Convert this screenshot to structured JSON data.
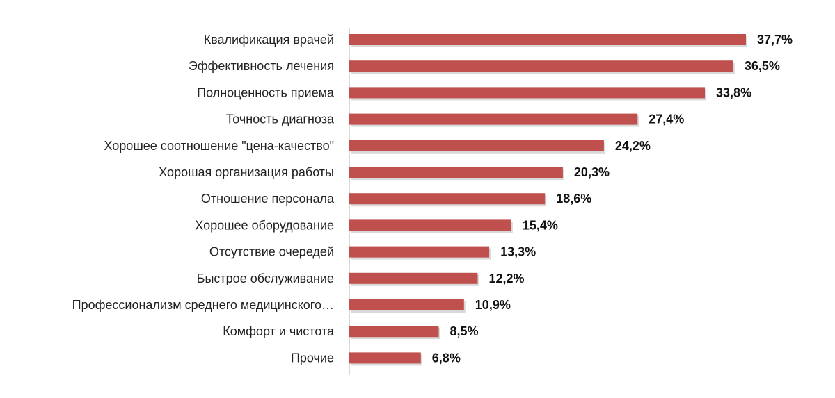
{
  "chart_data": {
    "type": "bar",
    "orientation": "horizontal",
    "categories": [
      "Квалификация врачей",
      "Эффективность лечения",
      "Полноценность приема",
      "Точность диагноза",
      "Хорошее соотношение \"цена-качество\"",
      "Хорошая организация работы",
      "Отношение персонала",
      "Хорошее оборудование",
      "Отсутствие очередей",
      "Быстрое обслуживание",
      "Профессионализм среднего медицинского…",
      "Комфорт и чистота",
      "Прочие"
    ],
    "values": [
      37.7,
      36.5,
      33.8,
      27.4,
      24.2,
      20.3,
      18.6,
      15.4,
      13.3,
      12.2,
      10.9,
      8.5,
      6.8
    ],
    "value_labels": [
      "37,7%",
      "36,5%",
      "33,8%",
      "27,4%",
      "24,2%",
      "20,3%",
      "18,6%",
      "15,4%",
      "13,3%",
      "12,2%",
      "10,9%",
      "8,5%",
      "6,8%"
    ],
    "xlim": [
      0,
      37.7
    ],
    "grid": false,
    "legend": "none",
    "colors": {
      "bar": "#c0504d",
      "axis": "#b0b0b0"
    }
  }
}
